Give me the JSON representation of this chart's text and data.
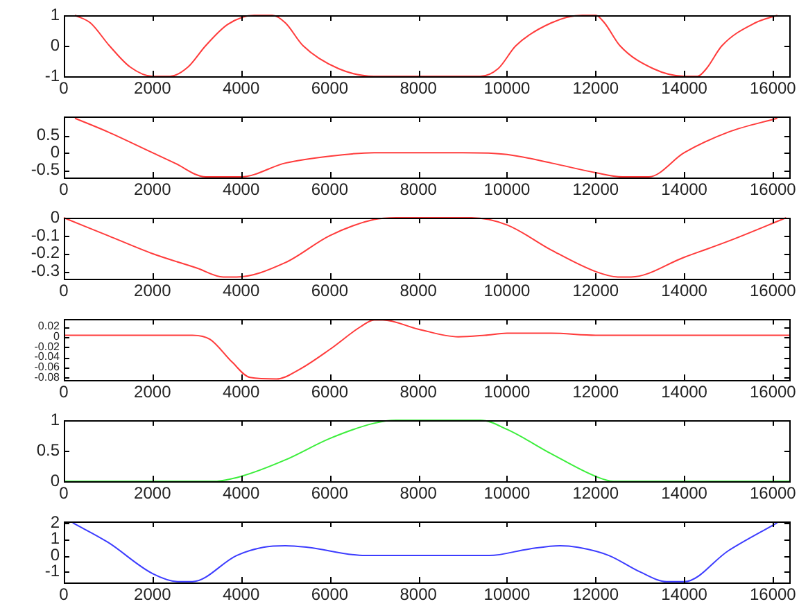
{
  "chart_data": [
    {
      "type": "line",
      "xlim": [
        0,
        16384
      ],
      "xticks": [
        0,
        2000,
        4000,
        6000,
        8000,
        10000,
        12000,
        14000,
        16000
      ],
      "ylim": [
        -1,
        1
      ],
      "yticks": [
        -1,
        0,
        1
      ],
      "grid": false,
      "legend": false,
      "marker": "none",
      "line_style": "solid",
      "series": [
        {
          "color": "#ff3b3b",
          "x": [
            250,
            600,
            1030,
            1500,
            2000,
            2400,
            2800,
            3200,
            3700,
            4300,
            4700,
            5000,
            5400,
            6200,
            7000,
            9400,
            9800,
            10200,
            11000,
            11700,
            12000,
            12200,
            12550,
            13300,
            14000,
            14300,
            14500,
            14850,
            15600,
            16100
          ],
          "values": [
            1,
            0.75,
            0,
            -0.7,
            -1,
            -1,
            -0.7,
            0,
            0.7,
            1,
            1,
            0.75,
            0,
            -0.75,
            -1,
            -1,
            -0.75,
            0,
            0.75,
            1,
            1,
            0.75,
            0,
            -0.75,
            -1,
            -1,
            -0.75,
            0,
            0.75,
            1
          ]
        }
      ]
    },
    {
      "type": "line",
      "xlim": [
        0,
        16384
      ],
      "xticks": [
        0,
        2000,
        4000,
        6000,
        8000,
        10000,
        12000,
        14000,
        16000
      ],
      "ylim": [
        -0.72,
        1.05
      ],
      "yticks": [
        -0.5,
        0,
        0.5
      ],
      "grid": false,
      "legend": false,
      "marker": "none",
      "line_style": "solid",
      "series": [
        {
          "color": "#ff3b3b",
          "x": [
            250,
            1000,
            2000,
            2500,
            3200,
            4000,
            5000,
            6000,
            7000,
            9000,
            10000,
            11000,
            12000,
            12600,
            13200,
            14000,
            15000,
            16100
          ],
          "values": [
            1.0,
            0.6,
            0,
            -0.3,
            -0.7,
            -0.7,
            -0.3,
            -0.1,
            0,
            0,
            -0.05,
            -0.3,
            -0.58,
            -0.7,
            -0.7,
            0,
            0.6,
            1.0
          ]
        }
      ]
    },
    {
      "type": "line",
      "xlim": [
        0,
        16384
      ],
      "xticks": [
        0,
        2000,
        4000,
        6000,
        8000,
        10000,
        12000,
        14000,
        16000
      ],
      "ylim": [
        -0.34,
        0
      ],
      "yticks": [
        -0.3,
        -0.2,
        -0.1,
        0
      ],
      "grid": false,
      "legend": false,
      "marker": "none",
      "line_style": "solid",
      "series": [
        {
          "color": "#ff3b3b",
          "x": [
            0,
            1000,
            2000,
            3000,
            3600,
            3900,
            5000,
            6000,
            7000,
            7500,
            9200,
            10000,
            11000,
            12000,
            12500,
            12800,
            14000,
            15000,
            16300
          ],
          "values": [
            0,
            -0.1,
            -0.2,
            -0.28,
            -0.33,
            -0.33,
            -0.25,
            -0.1,
            -0.01,
            0,
            0,
            -0.04,
            -0.18,
            -0.3,
            -0.33,
            -0.33,
            -0.22,
            -0.13,
            0
          ]
        }
      ]
    },
    {
      "type": "line",
      "xlim": [
        0,
        16384
      ],
      "xticks": [
        0,
        2000,
        4000,
        6000,
        8000,
        10000,
        12000,
        14000,
        16000
      ],
      "ylim": [
        -0.085,
        0.035
      ],
      "yticks": [
        -0.08,
        -0.06,
        -0.04,
        -0.02,
        0,
        0.02
      ],
      "grid": false,
      "legend": false,
      "marker": "none",
      "line_style": "solid",
      "series": [
        {
          "color": "#ff3b3b",
          "x": [
            0,
            2900,
            3300,
            3800,
            4200,
            4800,
            5300,
            6000,
            6700,
            7000,
            7200,
            8000,
            8900,
            9500,
            10000,
            11000,
            12000,
            16384
          ],
          "values": [
            0.003,
            0.003,
            -0.005,
            -0.05,
            -0.08,
            -0.083,
            -0.065,
            -0.025,
            0.02,
            0.033,
            0.033,
            0.015,
            0,
            0.003,
            0.007,
            0.007,
            0.003,
            0.003
          ]
        }
      ]
    },
    {
      "type": "line",
      "xlim": [
        0,
        16384
      ],
      "xticks": [
        0,
        2000,
        4000,
        6000,
        8000,
        10000,
        12000,
        14000,
        16000
      ],
      "ylim": [
        0,
        1
      ],
      "yticks": [
        0,
        0.5,
        1
      ],
      "grid": false,
      "legend": false,
      "marker": "none",
      "line_style": "solid",
      "series": [
        {
          "color": "#3cee3c",
          "x": [
            0,
            3400,
            4000,
            5000,
            6000,
            7000,
            7500,
            9400,
            10000,
            11000,
            12000,
            12400,
            16384
          ],
          "values": [
            0,
            0,
            0.08,
            0.35,
            0.7,
            0.95,
            1,
            1,
            0.85,
            0.45,
            0.08,
            0,
            0
          ]
        }
      ]
    },
    {
      "type": "line",
      "xlim": [
        0,
        16384
      ],
      "xticks": [
        0,
        2000,
        4000,
        6000,
        8000,
        10000,
        12000,
        14000,
        16000
      ],
      "ylim": [
        -1.65,
        2.08
      ],
      "yticks": [
        -1,
        0,
        1,
        2
      ],
      "grid": false,
      "legend": false,
      "marker": "none",
      "line_style": "solid",
      "series": [
        {
          "color": "#3c3cff",
          "x": [
            200,
            1000,
            2000,
            2600,
            2900,
            3900,
            4500,
            5000,
            5500,
            6800,
            9600,
            10500,
            11200,
            11600,
            12300,
            13000,
            13600,
            14000,
            15000,
            16100
          ],
          "values": [
            2,
            0.8,
            -1.1,
            -1.6,
            -1.6,
            0,
            0.5,
            0.6,
            0.5,
            0,
            0,
            0.4,
            0.6,
            0.5,
            0,
            -1.0,
            -1.6,
            -1.6,
            0.3,
            2
          ]
        }
      ]
    }
  ]
}
